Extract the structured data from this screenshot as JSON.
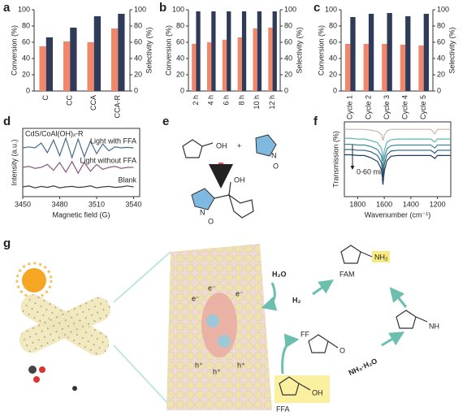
{
  "panels": [
    "a",
    "b",
    "c",
    "d",
    "e",
    "f",
    "g"
  ],
  "chart_data": [
    {
      "type": "bar",
      "categories": [
        "C",
        "CC",
        "CCA",
        "CCA-R"
      ],
      "ylabel": "Conversion (%)",
      "y2label": "Selectivity (%)",
      "ylim": [
        0,
        100
      ],
      "yticks": [
        0,
        20,
        40,
        60,
        80,
        100
      ],
      "y2lim": [
        0,
        100
      ],
      "y2ticks": [
        0,
        20,
        40,
        60,
        80,
        100
      ],
      "series": [
        {
          "name": "Conversion",
          "color": "#f0876a",
          "values": [
            55,
            61,
            60,
            77
          ]
        },
        {
          "name": "Selectivity",
          "color": "#2f3b59",
          "axis": "y2",
          "values": [
            66,
            78,
            92,
            95
          ]
        }
      ]
    },
    {
      "type": "bar",
      "categories": [
        "2 h",
        "4 h",
        "6 h",
        "8 h",
        "10 h",
        "12 h"
      ],
      "ylabel": "Conversion (%)",
      "y2label": "Selectivity (%)",
      "ylim": [
        0,
        100
      ],
      "yticks": [
        0,
        20,
        40,
        60,
        80,
        100
      ],
      "y2lim": [
        0,
        100
      ],
      "y2ticks": [
        0,
        20,
        40,
        60,
        80,
        100
      ],
      "series": [
        {
          "name": "Conversion",
          "color": "#f0876a",
          "values": [
            58,
            60,
            63,
            66,
            77,
            78
          ]
        },
        {
          "name": "Selectivity",
          "color": "#2f3b59",
          "axis": "y2",
          "values": [
            98,
            98,
            98,
            98,
            98,
            98
          ]
        }
      ]
    },
    {
      "type": "bar",
      "categories": [
        "Cycle 1",
        "Cycle 2",
        "Cycle 3",
        "Cycle 4",
        "Cycle 5"
      ],
      "ylabel": "Conversion (%)",
      "y2label": "Selectivity (%)",
      "ylim": [
        0,
        100
      ],
      "yticks": [
        0,
        20,
        40,
        60,
        80,
        100
      ],
      "y2lim": [
        0,
        100
      ],
      "y2ticks": [
        0,
        20,
        40,
        60,
        80,
        100
      ],
      "series": [
        {
          "name": "Conversion",
          "color": "#f0876a",
          "values": [
            58,
            58,
            58,
            57,
            56
          ]
        },
        {
          "name": "Selectivity",
          "color": "#2f3b59",
          "axis": "y2",
          "values": [
            91,
            95,
            96,
            92,
            95
          ]
        }
      ]
    },
    {
      "type": "line",
      "title": "CdS/CoAl(OH)ₓ-R",
      "xlabel": "Magnetic field (G)",
      "ylabel": "Intensity (a.u.)",
      "xlim": [
        3450,
        3545
      ],
      "xticks": [
        3450,
        3480,
        3510,
        3540
      ],
      "ylim": [
        0,
        7
      ],
      "x": [
        3450,
        3455,
        3460,
        3465,
        3470,
        3475,
        3480,
        3485,
        3490,
        3495,
        3500,
        3505,
        3510,
        3515,
        3520,
        3525,
        3530,
        3535,
        3540
      ],
      "series": [
        {
          "name": "Light with FFA",
          "color": "#4a6a8a",
          "values": [
            5,
            5.1,
            5,
            5.5,
            4.5,
            5.8,
            4.2,
            6,
            4,
            5.9,
            4.1,
            5.7,
            4.4,
            5.4,
            4.7,
            5.1,
            5,
            5.05,
            5
          ]
        },
        {
          "name": "Light without FFA",
          "color": "#8a5a7a",
          "values": [
            3,
            3.1,
            2.9,
            3,
            3.3,
            2.7,
            3.5,
            2.5,
            3.6,
            2.4,
            3.5,
            2.6,
            3.3,
            2.8,
            3,
            3.1,
            2.9,
            3,
            3
          ]
        },
        {
          "name": "Blank",
          "color": "#3a3a4a",
          "values": [
            1,
            1.1,
            0.9,
            1.05,
            0.95,
            1.1,
            0.9,
            1,
            1.05,
            0.95,
            1,
            1.1,
            0.9,
            1,
            1.05,
            0.95,
            1,
            1.1,
            1
          ]
        }
      ]
    },
    {
      "type": "line",
      "xlabel": "Wavenumber (cm⁻¹)",
      "ylabel": "Transmission (%)",
      "annotation": "0-60 min",
      "xlim": [
        1900,
        1100
      ],
      "xticks": [
        1800,
        1600,
        1400,
        1200
      ],
      "ylim": [
        0,
        10
      ],
      "x": [
        1900,
        1850,
        1800,
        1750,
        1700,
        1650,
        1620,
        1610,
        1600,
        1580,
        1550,
        1500,
        1450,
        1400,
        1350,
        1300,
        1250,
        1220,
        1200,
        1150,
        1100
      ],
      "series": [
        {
          "color": "#c9b8a8",
          "values": [
            9,
            9,
            9,
            9,
            8.9,
            8.7,
            8.3,
            7.5,
            8.2,
            8.8,
            9,
            9,
            9,
            9,
            9,
            9,
            9,
            8.4,
            9,
            9,
            9
          ]
        },
        {
          "color": "#5fb8b0",
          "values": [
            7.8,
            7.8,
            7.7,
            7.7,
            7.5,
            7.2,
            6.4,
            4.8,
            6.2,
            7.3,
            7.6,
            7.7,
            7.7,
            7.7,
            7.7,
            7.7,
            7.7,
            7.3,
            7.7,
            7.7,
            7.7
          ]
        },
        {
          "color": "#3a8a98",
          "values": [
            7,
            7,
            6.9,
            6.9,
            6.7,
            6.3,
            5.4,
            3.6,
            5.2,
            6.4,
            6.8,
            6.9,
            6.9,
            6.9,
            6.9,
            6.9,
            6.9,
            6.5,
            6.9,
            6.9,
            6.9
          ]
        },
        {
          "color": "#2f5f80",
          "values": [
            6.3,
            6.3,
            6.2,
            6.2,
            6,
            5.5,
            4.5,
            2.6,
            4.3,
            5.6,
            6.1,
            6.2,
            6.2,
            6.2,
            6.2,
            6.2,
            6.2,
            5.8,
            6.2,
            6.2,
            6.2
          ]
        },
        {
          "color": "#1f3a5a",
          "values": [
            5.6,
            5.6,
            5.5,
            5.5,
            5.2,
            4.7,
            3.6,
            1.6,
            3.4,
            4.8,
            5.4,
            5.5,
            5.5,
            5.5,
            5.5,
            5.5,
            5.5,
            5.1,
            5.5,
            5.5,
            5.5
          ]
        }
      ]
    }
  ],
  "scheme_e": {
    "labels": [
      "OH",
      "+",
      "N",
      "O",
      "OH",
      "N",
      "O"
    ]
  },
  "scheme_g": {
    "water": "H₂O",
    "hydrogen": "H₂",
    "product": "FAM",
    "amine": "NH₂",
    "imine": "NH",
    "aldehyde": "FF",
    "carbonyl": "O",
    "ammonia": "NH₃·H₂O",
    "alcohol": "FFA",
    "hydroxyl": "OH",
    "electrons": [
      "e⁻",
      "e⁻",
      "e⁻"
    ],
    "holes": [
      "h⁺",
      "h⁺",
      "h⁺"
    ]
  }
}
